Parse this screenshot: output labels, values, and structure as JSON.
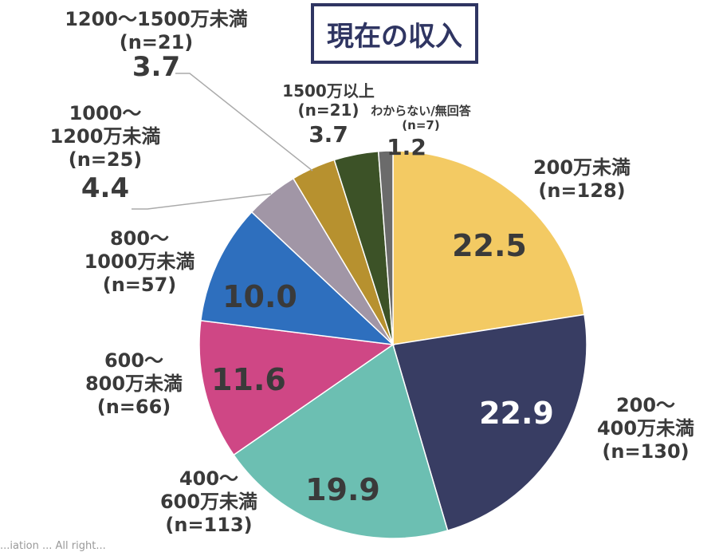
{
  "title": "現在の収入",
  "chart_data": {
    "type": "pie",
    "title": "現在の収入",
    "slices": [
      {
        "label": "200万未満",
        "n": "(n=128)",
        "value": 22.5,
        "color": "#f3ca63"
      },
      {
        "label": "200～400万未満",
        "n": "(n=130)",
        "value": 22.9,
        "color": "#383d63"
      },
      {
        "label": "400～600万未満",
        "n": "(n=113)",
        "value": 19.9,
        "color": "#6cbfb2"
      },
      {
        "label": "600～800万未満",
        "n": "(n=66)",
        "value": 11.6,
        "color": "#cf4785"
      },
      {
        "label": "800～1000万未満",
        "n": "(n=57)",
        "value": 10.0,
        "color": "#2e6fbe"
      },
      {
        "label": "1000～1200万未満",
        "n": "(n=25)",
        "value": 4.4,
        "color": "#a196a6"
      },
      {
        "label": "1200～1500万未満",
        "n": "(n=21)",
        "value": 3.7,
        "color": "#b7912f"
      },
      {
        "label": "1500万以上",
        "n": "(n=21)",
        "value": 3.7,
        "color": "#3c5227"
      },
      {
        "label": "わからない/無回答",
        "n": "(n=7)",
        "value": 1.2,
        "color": "#6b6b6b"
      }
    ]
  },
  "labels": {
    "s0": {
      "line1": "200万未満",
      "n": "(n=128)",
      "val": "22.5"
    },
    "s1": {
      "line1": "200～",
      "line2": "400万未満",
      "n": "(n=130)",
      "val": "22.9"
    },
    "s2": {
      "line1": "400～",
      "line2": "600万未満",
      "n": "(n=113)",
      "val": "19.9"
    },
    "s3": {
      "line1": "600～",
      "line2": "800万未満",
      "n": "(n=66)",
      "val": "11.6"
    },
    "s4": {
      "line1": "800～",
      "line2": "1000万未満",
      "n": "(n=57)",
      "val": "10.0"
    },
    "s5": {
      "line1": "1000～",
      "line2": "1200万未満",
      "n": "(n=25)",
      "val": "4.4"
    },
    "s6": {
      "line1": "1200～1500万未満",
      "n": "(n=21)",
      "val": "3.7"
    },
    "s7": {
      "line1": "1500万以上",
      "n": "(n=21)",
      "val": "3.7"
    },
    "s8": {
      "line1": "わからない/無回答",
      "n": "(n=7)",
      "val": "1.2"
    }
  },
  "footer": "...iation   ...   All right..."
}
